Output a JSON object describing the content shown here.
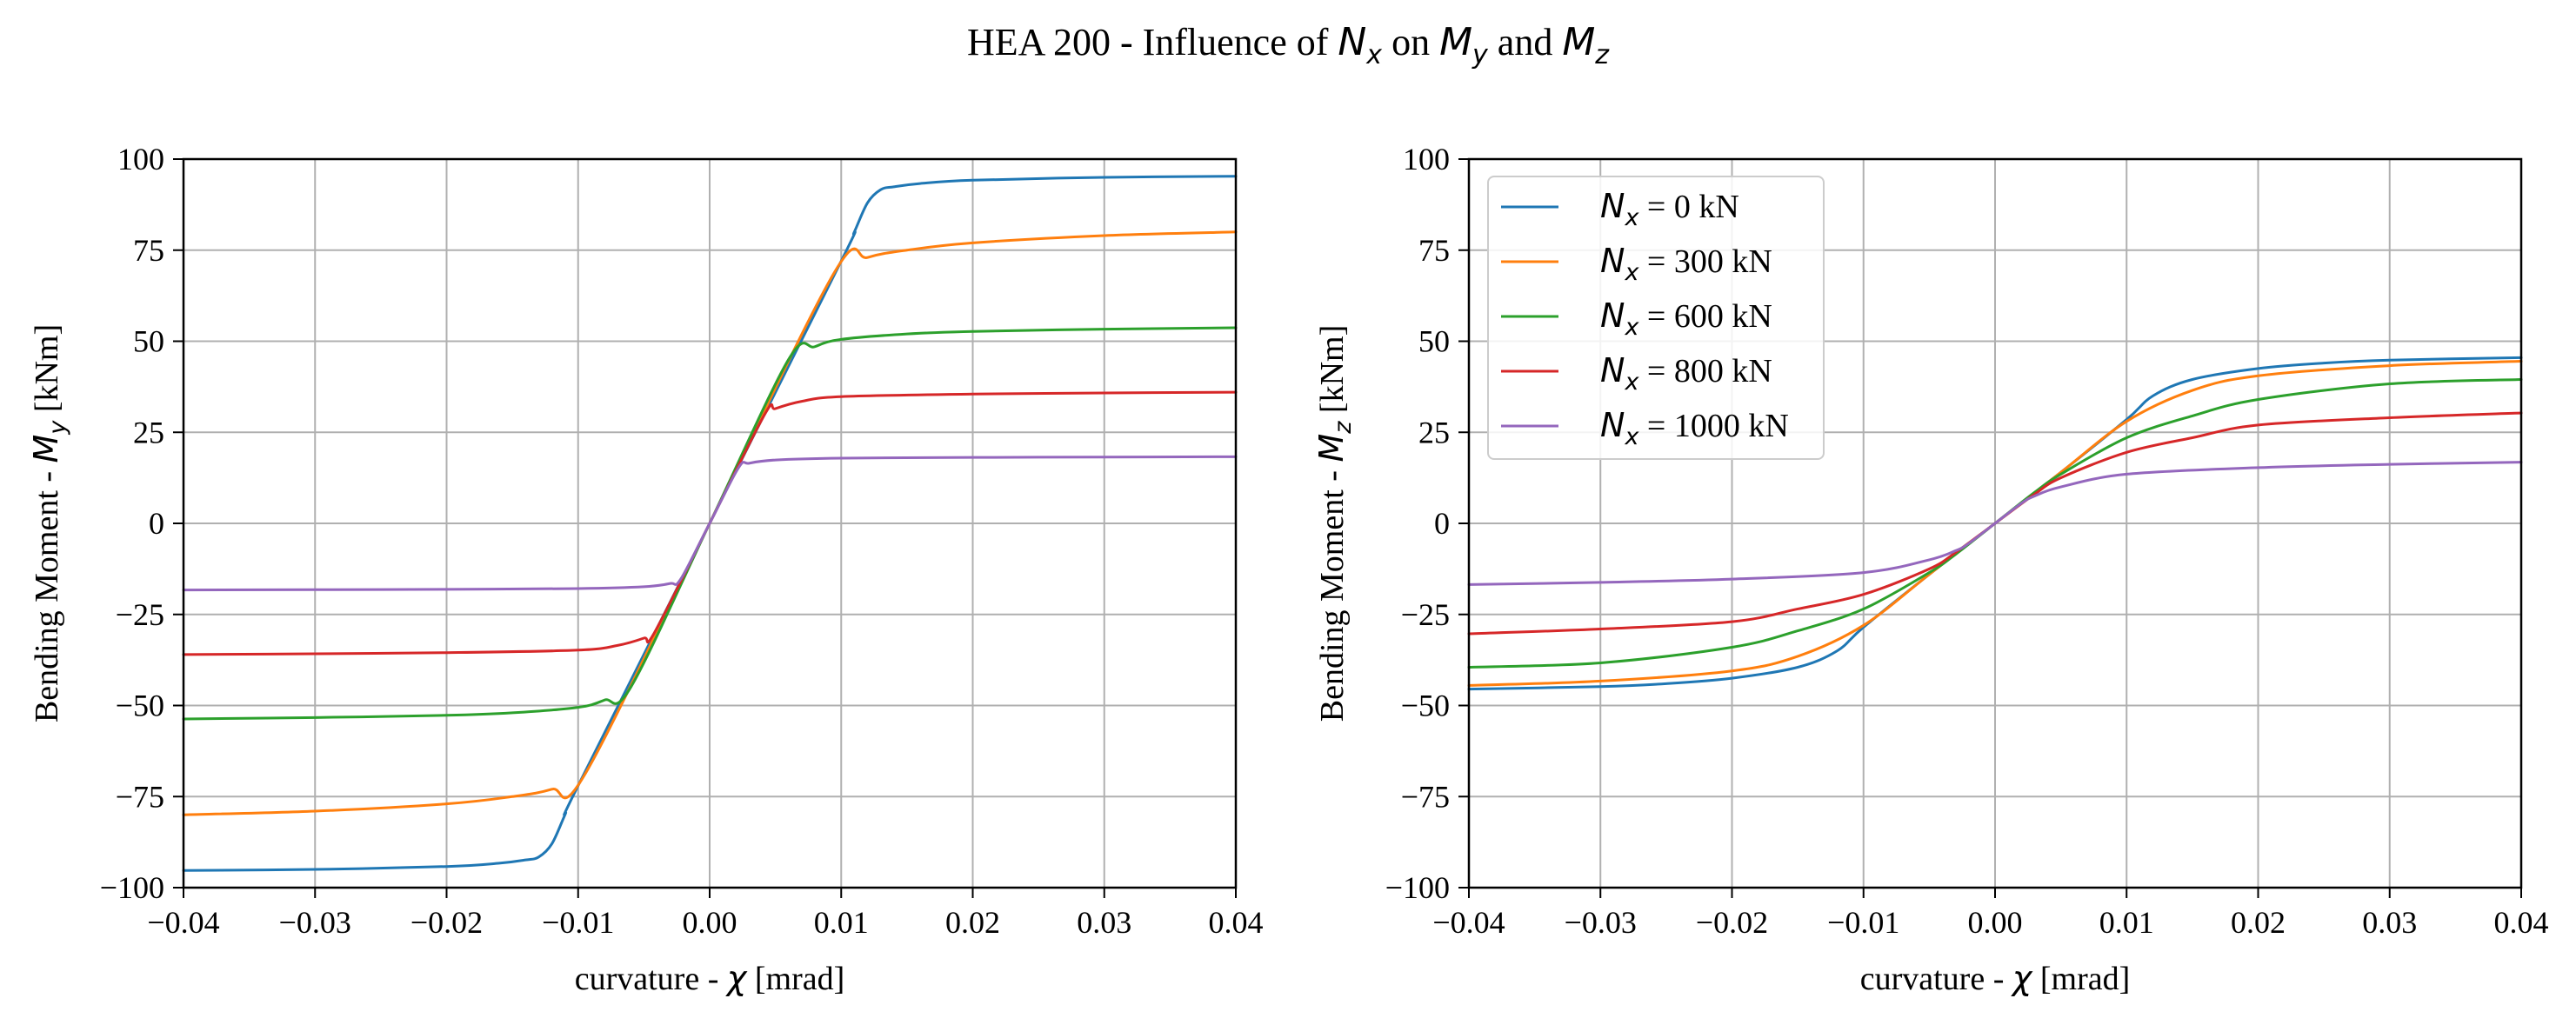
{
  "figure": {
    "title_prefix": "HEA 200 - Influence of ",
    "title_m1": "N",
    "title_s1": "x",
    "title_mid1": " on ",
    "title_m2": "M",
    "title_s2": "y",
    "title_mid2": " and ",
    "title_m3": "M",
    "title_s3": "z"
  },
  "colors": {
    "Nx_0": "#1f77b4",
    "Nx_300": "#ff7f0e",
    "Nx_600": "#2ca02c",
    "Nx_800": "#d62728",
    "Nx_1000": "#9467bd",
    "grid": "#b0b0b0",
    "axes": "#000000"
  },
  "legend": {
    "placement": "upper-left of right plot",
    "entries": [
      {
        "sym": "N",
        "sub": "x",
        "text": " = 0 kN"
      },
      {
        "sym": "N",
        "sub": "x",
        "text": " = 300 kN"
      },
      {
        "sym": "N",
        "sub": "x",
        "text": " = 600 kN"
      },
      {
        "sym": "N",
        "sub": "x",
        "text": " = 800 kN"
      },
      {
        "sym": "N",
        "sub": "x",
        "text": " = 1000 kN"
      }
    ]
  },
  "chart_data": [
    {
      "type": "line",
      "xlabel_prefix": "curvature - ",
      "xlabel_sym": "χ",
      "xlabel_unit": " [mrad]",
      "ylabel_prefix": "Bending Moment - ",
      "ylabel_sym": "M",
      "ylabel_sub": "y",
      "ylabel_unit": " [kNm]",
      "xlim": [
        -0.04,
        0.04
      ],
      "ylim": [
        -100,
        100
      ],
      "xticks": [
        -0.04,
        -0.03,
        -0.02,
        -0.01,
        0.0,
        0.01,
        0.02,
        0.03,
        0.04
      ],
      "xtick_labels": [
        "−0.04",
        "−0.03",
        "−0.02",
        "−0.01",
        "0.00",
        "0.01",
        "0.02",
        "0.03",
        "0.04"
      ],
      "yticks": [
        -100,
        -75,
        -50,
        -25,
        0,
        25,
        50,
        75,
        100
      ],
      "ytick_labels": [
        "−100",
        "−75",
        "−50",
        "−25",
        "0",
        "25",
        "50",
        "75",
        "100"
      ],
      "grid": true,
      "series": [
        {
          "key": "Nx_0",
          "x": [
            -0.04,
            -0.03,
            -0.02,
            -0.016,
            -0.014,
            -0.013,
            -0.012,
            -0.011,
            -0.01,
            0.0,
            0.01,
            0.011,
            0.012,
            0.013,
            0.014,
            0.016,
            0.02,
            0.03,
            0.04
          ],
          "y": [
            -95.3,
            -95.0,
            -94.2,
            -93.3,
            -92.4,
            -91.6,
            -88,
            -80,
            -72,
            0,
            72,
            80,
            88,
            91.6,
            92.4,
            93.3,
            94.2,
            95.0,
            95.3
          ]
        },
        {
          "key": "Nx_300",
          "x": [
            -0.04,
            -0.03,
            -0.02,
            -0.015,
            -0.012,
            -0.0095,
            0.0,
            0.0095,
            0.012,
            0.015,
            0.02,
            0.03,
            0.04
          ],
          "y": [
            -80,
            -79,
            -77,
            -75,
            -73,
            -69,
            0,
            69,
            73,
            75,
            77,
            79,
            80
          ]
        },
        {
          "key": "Nx_600",
          "x": [
            -0.04,
            -0.03,
            -0.02,
            -0.015,
            -0.01,
            -0.008,
            -0.006,
            0.0,
            0.006,
            0.008,
            0.01,
            0.015,
            0.02,
            0.03,
            0.04
          ],
          "y": [
            -53.7,
            -53.3,
            -52.7,
            -52,
            -50.5,
            -48.5,
            -45,
            0,
            45,
            48.5,
            50.5,
            52,
            52.7,
            53.3,
            53.7
          ]
        },
        {
          "key": "Nx_800",
          "x": [
            -0.04,
            -0.03,
            -0.02,
            -0.01,
            -0.007,
            -0.005,
            -0.0042,
            0.0,
            0.0042,
            0.005,
            0.007,
            0.01,
            0.02,
            0.03,
            0.04
          ],
          "y": [
            -36,
            -35.8,
            -35.5,
            -34.8,
            -33.5,
            -31.5,
            -30,
            0,
            30,
            31.5,
            33.5,
            34.8,
            35.5,
            35.8,
            36
          ]
        },
        {
          "key": "Nx_1000",
          "x": [
            -0.04,
            -0.03,
            -0.02,
            -0.01,
            -0.005,
            -0.003,
            -0.0022,
            0.0,
            0.0022,
            0.003,
            0.005,
            0.01,
            0.02,
            0.03,
            0.04
          ],
          "y": [
            -18.3,
            -18.2,
            -18.1,
            -17.9,
            -17.4,
            -16.5,
            -15.3,
            0,
            15.3,
            16.5,
            17.4,
            17.9,
            18.1,
            18.2,
            18.3
          ]
        }
      ]
    },
    {
      "type": "line",
      "xlabel_prefix": "curvature - ",
      "xlabel_sym": "χ",
      "xlabel_unit": " [mrad]",
      "ylabel_prefix": "Bending Moment - ",
      "ylabel_sym": "M",
      "ylabel_sub": "z",
      "ylabel_unit": " [kNm]",
      "xlim": [
        -0.04,
        0.04
      ],
      "ylim": [
        -100,
        100
      ],
      "xticks": [
        -0.04,
        -0.03,
        -0.02,
        -0.01,
        0.0,
        0.01,
        0.02,
        0.03,
        0.04
      ],
      "xtick_labels": [
        "−0.04",
        "−0.03",
        "−0.02",
        "−0.01",
        "0.00",
        "0.01",
        "0.02",
        "0.03",
        "0.04"
      ],
      "yticks": [
        -100,
        -75,
        -50,
        -25,
        0,
        25,
        50,
        75,
        100
      ],
      "ytick_labels": [
        "−100",
        "−75",
        "−50",
        "−25",
        "0",
        "25",
        "50",
        "75",
        "100"
      ],
      "grid": true,
      "series": [
        {
          "key": "Nx_0",
          "x": [
            -0.04,
            -0.03,
            -0.025,
            -0.02,
            -0.015,
            -0.012,
            -0.01,
            -0.005,
            0.0,
            0.005,
            0.01,
            0.012,
            0.015,
            0.02,
            0.025,
            0.03,
            0.04
          ],
          "y": [
            -45.5,
            -44.8,
            -44,
            -42.5,
            -39.5,
            -35,
            -28.5,
            -14,
            0,
            14,
            28.5,
            35,
            39.5,
            42.5,
            44,
            44.8,
            45.5
          ]
        },
        {
          "key": "Nx_300",
          "x": [
            -0.04,
            -0.03,
            -0.02,
            -0.015,
            -0.01,
            -0.005,
            0.0,
            0.005,
            0.01,
            0.015,
            0.02,
            0.03,
            0.04
          ],
          "y": [
            -44.5,
            -43.3,
            -40.5,
            -36.5,
            -28,
            -14,
            0,
            14,
            28,
            36.5,
            40.5,
            43.3,
            44.5
          ]
        },
        {
          "key": "Nx_600",
          "x": [
            -0.04,
            -0.03,
            -0.02,
            -0.015,
            -0.01,
            -0.005,
            -0.003,
            0.0,
            0.003,
            0.005,
            0.01,
            0.015,
            0.02,
            0.03,
            0.04
          ],
          "y": [
            -39.5,
            -38.3,
            -34,
            -29.5,
            -23.5,
            -13.5,
            -8.5,
            0,
            8.5,
            13.5,
            23.5,
            29.5,
            34,
            38.3,
            39.5
          ]
        },
        {
          "key": "Nx_800",
          "x": [
            -0.04,
            -0.03,
            -0.02,
            -0.015,
            -0.01,
            -0.005,
            -0.003,
            0.0,
            0.003,
            0.005,
            0.01,
            0.015,
            0.02,
            0.03,
            0.04
          ],
          "y": [
            -30.3,
            -29,
            -27,
            -23.5,
            -19.5,
            -12.5,
            -8,
            0,
            8,
            12.5,
            19.5,
            23.5,
            27,
            29,
            30.3
          ]
        },
        {
          "key": "Nx_1000",
          "x": [
            -0.04,
            -0.03,
            -0.02,
            -0.01,
            -0.005,
            -0.003,
            -0.002,
            0.0,
            0.002,
            0.003,
            0.005,
            0.01,
            0.02,
            0.03,
            0.04
          ],
          "y": [
            -16.8,
            -16.2,
            -15.3,
            -13.5,
            -10,
            -7.5,
            -5.5,
            0,
            5.5,
            7.5,
            10,
            13.5,
            15.3,
            16.2,
            16.8
          ]
        }
      ]
    }
  ]
}
